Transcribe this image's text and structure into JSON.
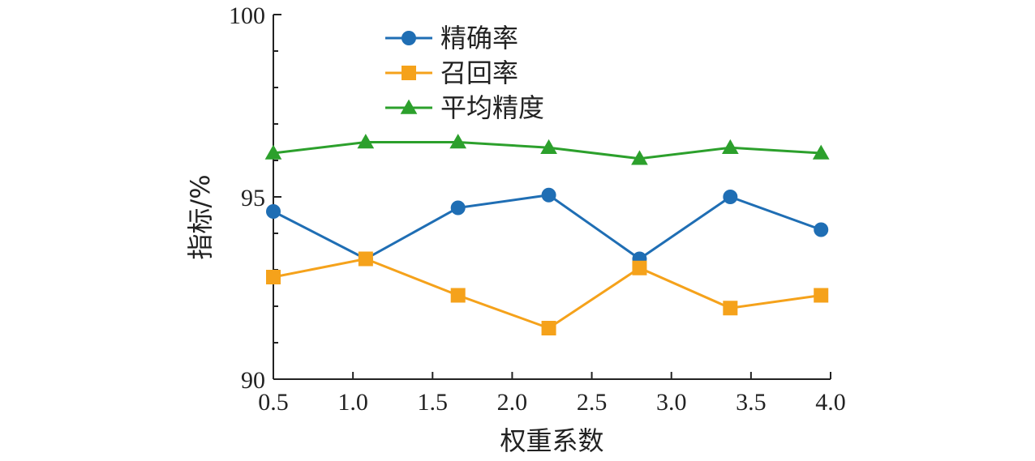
{
  "chart_data": {
    "type": "line",
    "xlabel": "权重系数",
    "ylabel": "指标/%",
    "xlim": [
      0.5,
      4.0
    ],
    "ylim": [
      90,
      100
    ],
    "xticks": [
      "0.5",
      "1.0",
      "1.5",
      "2.0",
      "2.5",
      "3.0",
      "3.5",
      "4.0"
    ],
    "yticks": [
      "90",
      "95",
      "100"
    ],
    "grid": false,
    "legend_position": "top-left",
    "x": [
      0.5,
      1.08,
      1.66,
      2.23,
      2.8,
      3.37,
      3.94
    ],
    "series": [
      {
        "name": "精确率",
        "marker": "circle",
        "color": "#1f6eb4",
        "values": [
          94.6,
          93.3,
          94.7,
          95.05,
          93.3,
          95.0,
          94.1
        ]
      },
      {
        "name": "召回率",
        "marker": "square",
        "color": "#f5a21b",
        "values": [
          92.8,
          93.3,
          92.3,
          91.4,
          93.05,
          91.95,
          92.3
        ]
      },
      {
        "name": "平均精度",
        "marker": "triangle",
        "color": "#2ca02c",
        "values": [
          96.2,
          96.5,
          96.5,
          96.35,
          96.05,
          96.35,
          96.2
        ]
      }
    ]
  }
}
